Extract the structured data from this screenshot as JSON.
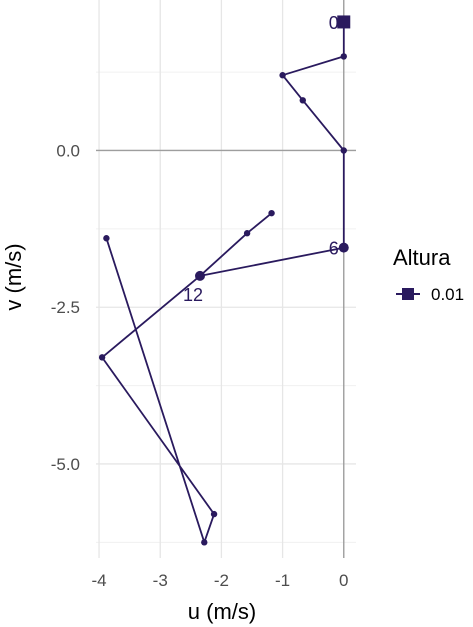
{
  "chart_data": {
    "type": "line",
    "title": "",
    "xlabel": "u (m/s)",
    "ylabel": "v (m/s)",
    "xlim": [
      -4.05,
      0.2
    ],
    "ylim": [
      -6.5,
      2.4
    ],
    "x_ticks": [
      -4,
      -3,
      -2,
      -1,
      0
    ],
    "x_tick_labels": [
      "-4",
      "-3",
      "-2",
      "-1",
      "0"
    ],
    "y_ticks": [
      0,
      -2.5,
      -5
    ],
    "y_tick_labels": [
      "0.0",
      "-2.5",
      "-5.0"
    ],
    "grid": true,
    "zero_lines": true,
    "legend": {
      "title": "Altura",
      "position": "right",
      "entries": [
        "0.01"
      ]
    },
    "series": [
      {
        "name": "0.01",
        "color": "#2a1a5e",
        "points": [
          {
            "x": 0.0,
            "y": 2.05,
            "marker": "square",
            "label": "0"
          },
          {
            "x": 0.0,
            "y": 1.5,
            "marker": "dot"
          },
          {
            "x": -1.0,
            "y": 1.2,
            "marker": "dot"
          },
          {
            "x": -0.67,
            "y": 0.8,
            "marker": "dot"
          },
          {
            "x": 0.0,
            "y": 0.0,
            "marker": "dot"
          },
          {
            "x": 0.0,
            "y": -1.55,
            "marker": "circle",
            "label": "6"
          },
          {
            "x": -2.35,
            "y": -2.0,
            "marker": "circle",
            "label": "12"
          },
          {
            "x": -3.95,
            "y": -3.3,
            "marker": "dot"
          },
          {
            "x": -2.12,
            "y": -5.8,
            "marker": "dot"
          },
          {
            "x": -2.28,
            "y": -6.25,
            "marker": "dot"
          },
          {
            "x": -3.88,
            "y": -1.4,
            "marker": "dot"
          }
        ]
      },
      {
        "name": "",
        "color": "#2a1a5e",
        "points": [
          {
            "x": -2.35,
            "y": -2.0,
            "marker": "none"
          },
          {
            "x": -1.58,
            "y": -1.32,
            "marker": "dot"
          },
          {
            "x": -1.18,
            "y": -1.0,
            "marker": "dot"
          }
        ]
      }
    ]
  }
}
